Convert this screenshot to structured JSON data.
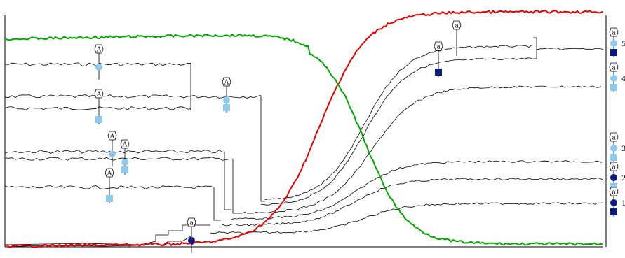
{
  "colors": {
    "increasing": "#e30000",
    "decreasing": "#00a600",
    "branches": "#000000",
    "light_glyph": "#8ecaf0",
    "dark_glyph": "#0a1a82"
  },
  "right_axis": {
    "labels": [
      "5",
      "4",
      "3",
      "2",
      "1"
    ]
  },
  "glyph_marker_text": {
    "upper": "A",
    "lower": "a"
  },
  "glyphs": [
    {
      "marker": "A",
      "top": "circle",
      "bottom": null,
      "color": "light"
    },
    {
      "marker": "A",
      "top": null,
      "bottom": "square",
      "color": "light"
    },
    {
      "marker": "A",
      "top": "circle",
      "bottom": "square",
      "color": "light"
    },
    {
      "marker": "A",
      "top": "circle",
      "bottom": null,
      "color": "light"
    },
    {
      "marker": "A",
      "top": "circle",
      "bottom": "square",
      "color": "light"
    },
    {
      "marker": "A",
      "top": null,
      "bottom": "square",
      "color": "light"
    },
    {
      "marker": "a",
      "top": "circle",
      "bottom": null,
      "color": "dark"
    },
    {
      "marker": "a",
      "top": null,
      "bottom": null,
      "color": "light"
    },
    {
      "marker": "a",
      "top": null,
      "bottom": "square",
      "color": "dark"
    }
  ],
  "right_legend": [
    {
      "label": "5",
      "marker": "a",
      "circle": "light",
      "square": "dark"
    },
    {
      "label": "4",
      "marker": "a",
      "circle": "light",
      "square": "light"
    },
    {
      "label": "3",
      "marker": "a",
      "circle": "light",
      "square": "light"
    },
    {
      "label": "2",
      "marker": "a",
      "circle": "dark",
      "square": "light"
    },
    {
      "label": "1",
      "marker": "a",
      "circle": "dark",
      "square": "dark"
    }
  ]
}
